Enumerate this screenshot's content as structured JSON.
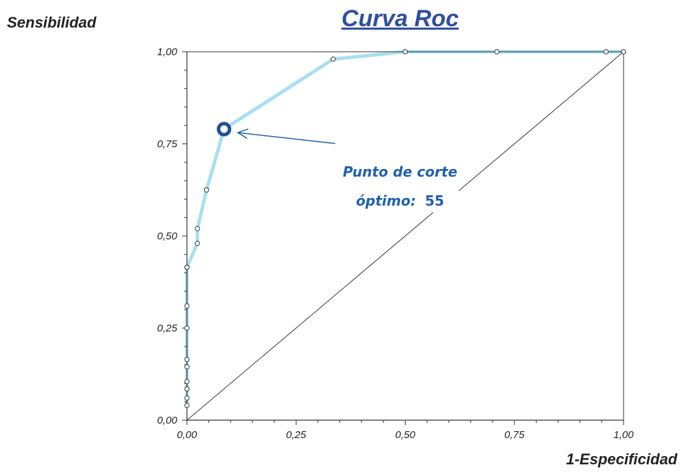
{
  "chart_data": {
    "type": "line",
    "title": "Curva Roc",
    "xlabel": "1-Especificidad",
    "ylabel": "Sensibilidad",
    "xlim": [
      0,
      1
    ],
    "ylim": [
      0,
      1
    ],
    "x_ticks": [
      "0,00",
      "0,25",
      "0,50",
      "0,75",
      "1,00"
    ],
    "y_ticks": [
      "0,00",
      "0,25",
      "0,50",
      "0,75",
      "1,00"
    ],
    "series": [
      {
        "name": "",
        "color": "#a8dff0",
        "x": [
          0.0,
          0.0,
          0.0,
          0.0,
          0.0,
          0.0,
          0.0,
          0.0,
          0.0,
          0.0,
          0.024,
          0.024,
          0.045,
          0.085,
          0.335,
          0.5,
          0.71,
          0.96,
          1.0
        ],
        "y": [
          0.04,
          0.06,
          0.085,
          0.105,
          0.145,
          0.165,
          0.25,
          0.31,
          0.415,
          0.415,
          0.48,
          0.52,
          0.625,
          0.79,
          0.98,
          1.0,
          1.0,
          1.0,
          1.0
        ]
      }
    ],
    "reference_line": {
      "color": "#333333",
      "x": [
        0,
        1
      ],
      "y": [
        0,
        1
      ]
    },
    "highlight_point": {
      "x": 0.085,
      "y": 0.79,
      "color": "#1f4f9a"
    },
    "annotation": {
      "line1": "Punto de corte",
      "line2_prefix": "óptimo:",
      "line2_value": "55",
      "color": "#2060b0"
    },
    "grid": false
  }
}
